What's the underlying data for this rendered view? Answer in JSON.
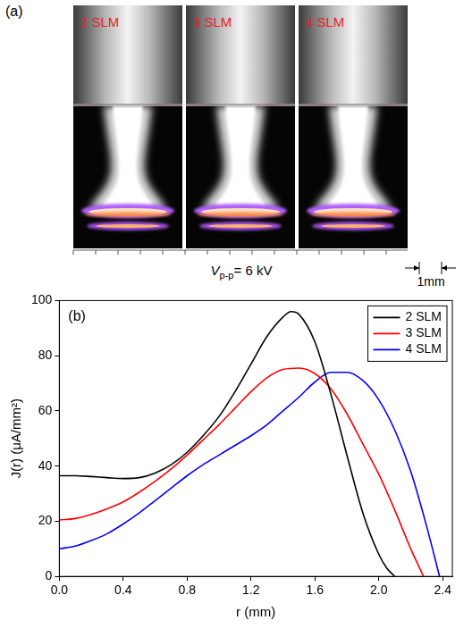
{
  "figure_a": {
    "label": "(a)",
    "photos": [
      "2 SLM",
      "3 SLM",
      "4 SLM"
    ],
    "voltage_label": {
      "symbol": "V",
      "subscript": "p-p",
      "text": "= 6 kV"
    },
    "scale_bar": "1mm"
  },
  "chart_data": {
    "type": "line",
    "title": "(b)",
    "x_label": "r (mm)",
    "y_label": "J(r) (μA/mm²)",
    "xlim": [
      0,
      2.46
    ],
    "xticks": [
      {
        "value": 0,
        "label": "0.0"
      },
      0.4,
      {
        "value": 0.8,
        "label": "0.8"
      },
      {
        "value": 1.2,
        "label": "1.2"
      },
      {
        "value": 1.6,
        "label": "1.6"
      },
      {
        "value": 2.0,
        "label": "2.0"
      },
      2.4
    ],
    "ylim": [
      0,
      100
    ],
    "yticks": [
      0,
      20,
      40,
      60,
      80,
      100
    ],
    "grid": false,
    "legend": "upper right",
    "series": [
      {
        "name": "2 SLM",
        "color": "#000000",
        "x": [
          0,
          0.1,
          0.2,
          0.3,
          0.4,
          0.5,
          0.6,
          0.7,
          0.8,
          0.9,
          1.0,
          1.1,
          1.2,
          1.3,
          1.4,
          1.45,
          1.5,
          1.6,
          1.7,
          1.8,
          1.9,
          2.0,
          2.05,
          2.1
        ],
        "values": [
          36.5,
          36.5,
          36.2,
          35.8,
          35.5,
          35.8,
          37.5,
          40.5,
          45,
          51,
          58,
          67,
          77,
          87,
          94,
          96,
          95,
          85,
          66,
          44,
          23,
          8,
          3,
          0
        ]
      },
      {
        "name": "3 SLM",
        "color": "#ff0000",
        "x": [
          0,
          0.1,
          0.2,
          0.3,
          0.4,
          0.5,
          0.6,
          0.7,
          0.8,
          0.9,
          1.0,
          1.1,
          1.2,
          1.3,
          1.4,
          1.5,
          1.6,
          1.7,
          1.8,
          1.9,
          2.0,
          2.1,
          2.2,
          2.28
        ],
        "values": [
          20.5,
          21,
          22.5,
          24.5,
          27,
          30.5,
          34.5,
          39,
          44,
          49.5,
          55,
          61,
          67,
          72,
          75,
          75.5,
          73.5,
          68,
          59,
          48,
          37,
          24,
          10,
          0
        ]
      },
      {
        "name": "4 SLM",
        "color": "#0000ff",
        "x": [
          0,
          0.1,
          0.2,
          0.3,
          0.4,
          0.5,
          0.6,
          0.7,
          0.8,
          0.9,
          1.0,
          1.1,
          1.2,
          1.3,
          1.4,
          1.5,
          1.6,
          1.7,
          1.8,
          1.9,
          2.0,
          2.1,
          2.2,
          2.3,
          2.38
        ],
        "values": [
          10,
          11,
          13,
          15.5,
          19,
          23,
          27.5,
          32,
          36.5,
          40.5,
          44,
          47.5,
          51,
          55,
          60,
          65,
          70.5,
          74,
          74,
          71,
          64,
          53,
          38,
          18,
          0
        ]
      }
    ]
  }
}
